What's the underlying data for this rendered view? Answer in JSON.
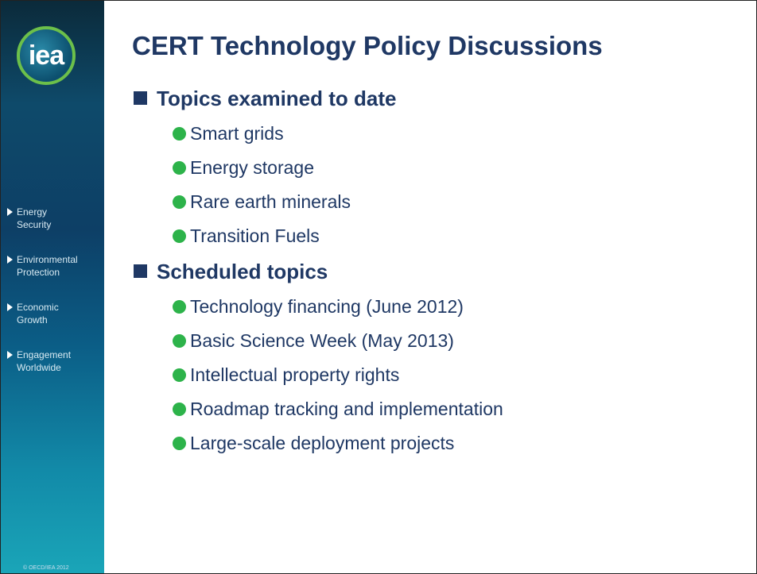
{
  "logo": "iea",
  "title": "CERT Technology Policy Discussions",
  "sidebar": {
    "items": [
      {
        "lines": [
          "Energy",
          "Security"
        ]
      },
      {
        "lines": [
          "Environmental",
          "Protection"
        ]
      },
      {
        "lines": [
          "Economic",
          "Growth"
        ]
      },
      {
        "lines": [
          "Engagement",
          "Worldwide"
        ]
      }
    ]
  },
  "sections": [
    {
      "heading": "Topics examined to date",
      "items": [
        "Smart grids",
        "Energy storage",
        "Rare earth minerals",
        "Transition Fuels"
      ]
    },
    {
      "heading": "Scheduled topics",
      "items": [
        "Technology financing (June 2012)",
        "Basic Science Week (May 2013)",
        "Intellectual property rights",
        "Roadmap tracking and implementation",
        "Large-scale deployment projects"
      ]
    }
  ],
  "copyright": "© OECD/IEA 2012"
}
